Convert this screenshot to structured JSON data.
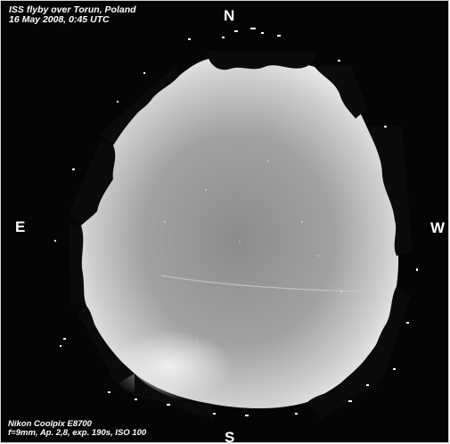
{
  "image": {
    "subject": "all-sky fisheye photograph of the ISS flyby trail",
    "colors": {
      "background": "#050505",
      "sky_center": "#8f8f8f",
      "sky_edge": "#e6e6e6",
      "trees": "#0b0b0b",
      "text": "#ffffff"
    }
  },
  "caption_top": {
    "line1": "ISS flyby over Torun, Poland",
    "line2": "16 May 2008, 0:45 UTC"
  },
  "caption_bottom": {
    "line1": "Nikon Coolpix E8700",
    "line2": "f=9mm, Ap. 2,8, exp. 190s, ISO 100"
  },
  "compass": {
    "north": "N",
    "south": "S",
    "east": "E",
    "west": "W"
  }
}
